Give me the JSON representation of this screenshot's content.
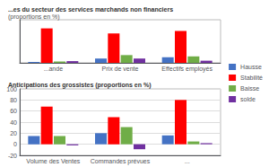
{
  "chart_data": [
    {
      "type": "bar",
      "title": "...es du secteur des services marchands non financiers",
      "subtitle": "(proportions en %)",
      "categories": [
        "...ande",
        "Prix de vente",
        "Effectifs employés"
      ],
      "series": [
        {
          "name": "Hausse",
          "color": "#4472C4",
          "values": [
            2,
            10,
            13
          ]
        },
        {
          "name": "Stabilité",
          "color": "#FF0000",
          "values": [
            80,
            68,
            74
          ]
        },
        {
          "name": "Baisse",
          "color": "#70AD47",
          "values": [
            3,
            18,
            15
          ]
        },
        {
          "name": "solde",
          "color": "#7030A0",
          "values": [
            4,
            10,
            5
          ]
        }
      ],
      "ylim": [
        0,
        100
      ],
      "yticks": [],
      "grid": false,
      "tick_labels": "x",
      "legend": "right"
    },
    {
      "type": "bar",
      "title": "Anticipations des grossistes (proportions en %)",
      "categories": [
        "Volume des Ventes",
        "Commandes prévues",
        "..."
      ],
      "series": [
        {
          "name": "Hausse",
          "color": "#4472C4",
          "values": [
            15,
            20,
            16
          ]
        },
        {
          "name": "Stabilité",
          "color": "#FF0000",
          "values": [
            68,
            49,
            80
          ]
        },
        {
          "name": "Baisse",
          "color": "#70AD47",
          "values": [
            15,
            31,
            5
          ]
        },
        {
          "name": "solde",
          "color": "#7030A0",
          "values": [
            -2,
            -9,
            2
          ]
        }
      ],
      "ylim": [
        -20,
        100
      ],
      "yticks": [
        -20,
        0,
        20,
        40,
        60,
        80,
        100
      ],
      "grid": true
    }
  ]
}
